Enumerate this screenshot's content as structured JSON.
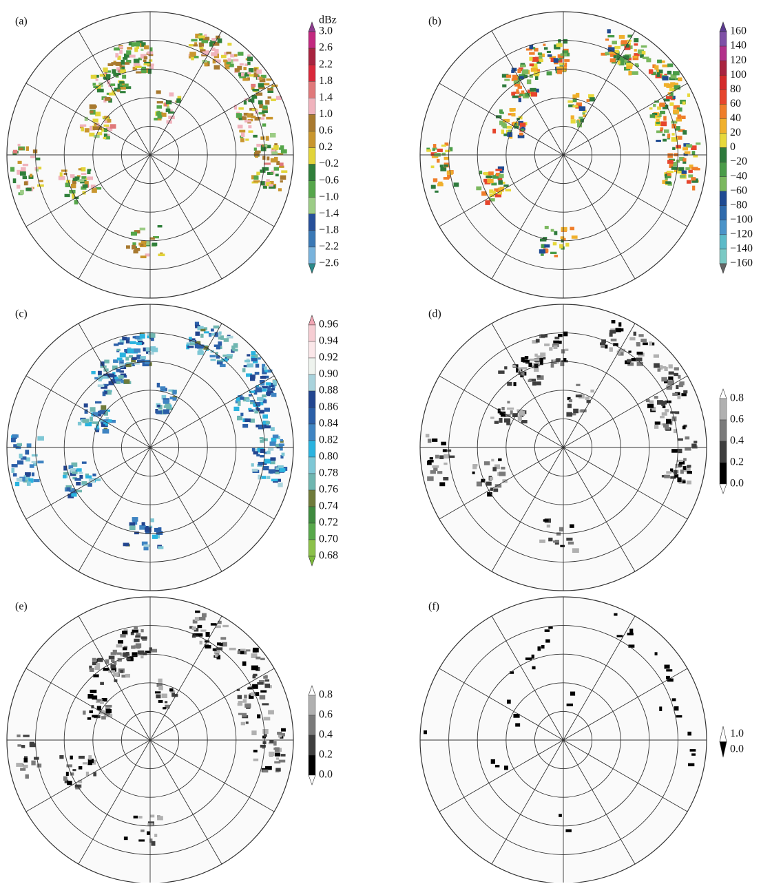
{
  "panels": [
    {
      "label": "(a)",
      "unit": "dBz",
      "colors": [
        "#8e3b8f",
        "#c2287f",
        "#a8233f",
        "#d9283a",
        "#e0787a",
        "#f0b3bd",
        "#a8792f",
        "#c9962e",
        "#e2d43a",
        "#2f7f3a",
        "#55a64a",
        "#9ccc86",
        "#27509a",
        "#3a78b5",
        "#79b3dc",
        "#2a8a8a"
      ],
      "ticks": [
        "3.0",
        "2.6",
        "2.2",
        "1.8",
        "1.4",
        "1.0",
        "0.6",
        "0.2",
        "−0.2",
        "−0.6",
        "−1.0",
        "−1.4",
        "−1.8",
        "−2.2",
        "−2.6"
      ]
    },
    {
      "label": "(b)",
      "colors": [
        "#5b3a8f",
        "#7e4fa6",
        "#b2308a",
        "#a8233f",
        "#d42a2a",
        "#e6452c",
        "#ef7d2a",
        "#f0b02c",
        "#e7d83b",
        "#2e7a3c",
        "#4a9c48",
        "#7bb85f",
        "#1f4a92",
        "#2f6aac",
        "#4a93c8",
        "#5bbac8",
        "#7ac9c4",
        "#666666"
      ],
      "ticks": [
        "160",
        "140",
        "120",
        "100",
        "80",
        "60",
        "40",
        "20",
        "0",
        "−20",
        "−40",
        "−60",
        "−80",
        "−100",
        "−120",
        "−140",
        "−160"
      ]
    },
    {
      "label": "(c)",
      "colors": [
        "#f2a6b4",
        "#f6cdd3",
        "#fbe7e9",
        "#eef3ee",
        "#a9d3dc",
        "#22458f",
        "#2b5fa8",
        "#3f84c2",
        "#2ab3df",
        "#7ec7d5",
        "#6fb6b0",
        "#6e7a3a",
        "#3e8a3e",
        "#57a84a",
        "#8cc14a",
        "#7dbb3a"
      ],
      "ticks": [
        "0.96",
        "0.94",
        "0.92",
        "0.90",
        "0.88",
        "0.86",
        "0.84",
        "0.82",
        "0.80",
        "0.78",
        "0.76",
        "0.74",
        "0.72",
        "0.70",
        "0.68"
      ]
    },
    {
      "label": "(d)",
      "colors": [
        "#ffffff",
        "#b0b0b0",
        "#7a7a7a",
        "#3e3e3e",
        "#000000",
        "#ffffff"
      ],
      "ticks": [
        "0.8",
        "0.6",
        "0.4",
        "0.2",
        "0.0"
      ]
    },
    {
      "label": "(e)",
      "colors": [
        "#ffffff",
        "#b0b0b0",
        "#7a7a7a",
        "#3e3e3e",
        "#000000",
        "#ffffff"
      ],
      "ticks": [
        "0.8",
        "0.6",
        "0.4",
        "0.2",
        "0.0"
      ]
    },
    {
      "label": "(f)",
      "colors": [
        "#ffffff",
        "#000000"
      ],
      "ticks": [
        "1.0",
        "0.0"
      ]
    }
  ]
}
